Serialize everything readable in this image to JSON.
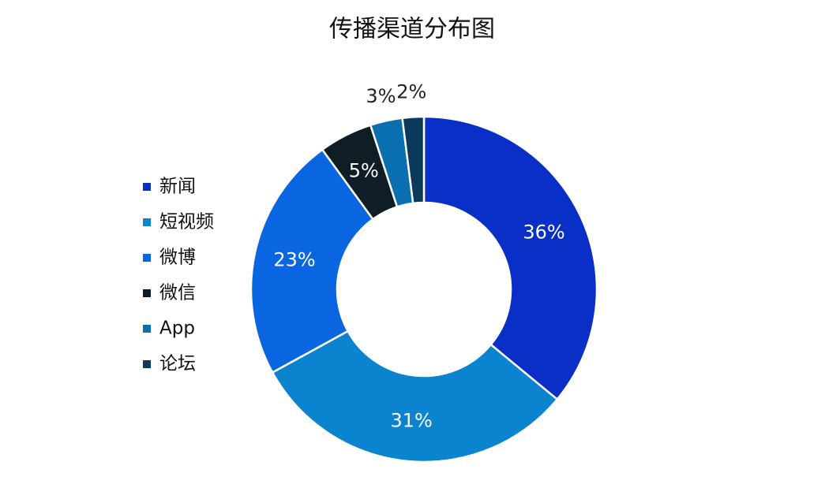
{
  "chart_data": {
    "type": "donut",
    "title": "传播渠道分布图",
    "categories": [
      "新闻",
      "短视频",
      "微博",
      "微信",
      "App",
      "论坛"
    ],
    "values": [
      36,
      31,
      23,
      5,
      3,
      2
    ],
    "value_labels": [
      "36%",
      "31%",
      "23%",
      "5%",
      "3%",
      "2%"
    ],
    "colors": [
      "#0a2fc6",
      "#0a84cf",
      "#0a66e0",
      "#0f1e25",
      "#0a6fae",
      "#0b3a5c"
    ],
    "legend": "left"
  }
}
